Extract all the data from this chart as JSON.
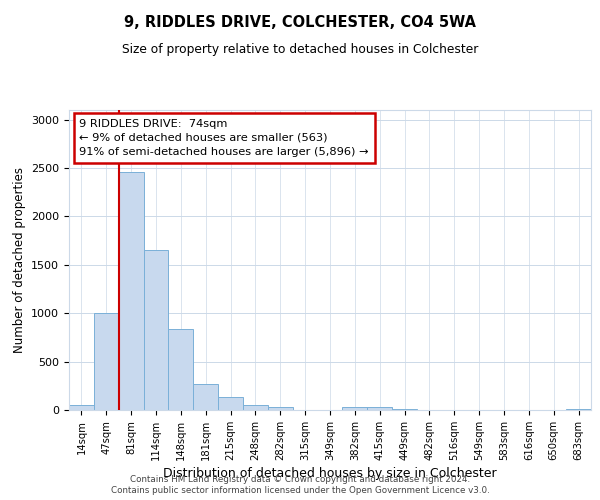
{
  "title": "9, RIDDLES DRIVE, COLCHESTER, CO4 5WA",
  "subtitle": "Size of property relative to detached houses in Colchester",
  "xlabel": "Distribution of detached houses by size in Colchester",
  "ylabel": "Number of detached properties",
  "categories": [
    "14sqm",
    "47sqm",
    "81sqm",
    "114sqm",
    "148sqm",
    "181sqm",
    "215sqm",
    "248sqm",
    "282sqm",
    "315sqm",
    "349sqm",
    "382sqm",
    "415sqm",
    "449sqm",
    "482sqm",
    "516sqm",
    "549sqm",
    "583sqm",
    "616sqm",
    "650sqm",
    "683sqm"
  ],
  "values": [
    50,
    1000,
    2460,
    1650,
    840,
    270,
    130,
    50,
    30,
    0,
    0,
    30,
    30,
    12,
    0,
    0,
    0,
    0,
    0,
    0,
    15
  ],
  "bar_color": "#c8d9ee",
  "bar_edge_color": "#7ab0d8",
  "vline_color": "#cc0000",
  "vline_x_idx": 2,
  "annotation_text": "9 RIDDLES DRIVE:  74sqm\n← 9% of detached houses are smaller (563)\n91% of semi-detached houses are larger (5,896) →",
  "annotation_box_color": "#ffffff",
  "annotation_box_edge": "#cc0000",
  "ylim": [
    0,
    3100
  ],
  "yticks": [
    0,
    500,
    1000,
    1500,
    2000,
    2500,
    3000
  ],
  "footer1": "Contains HM Land Registry data © Crown copyright and database right 2024.",
  "footer2": "Contains public sector information licensed under the Open Government Licence v3.0.",
  "background_color": "#ffffff",
  "grid_color": "#ccd9e8"
}
